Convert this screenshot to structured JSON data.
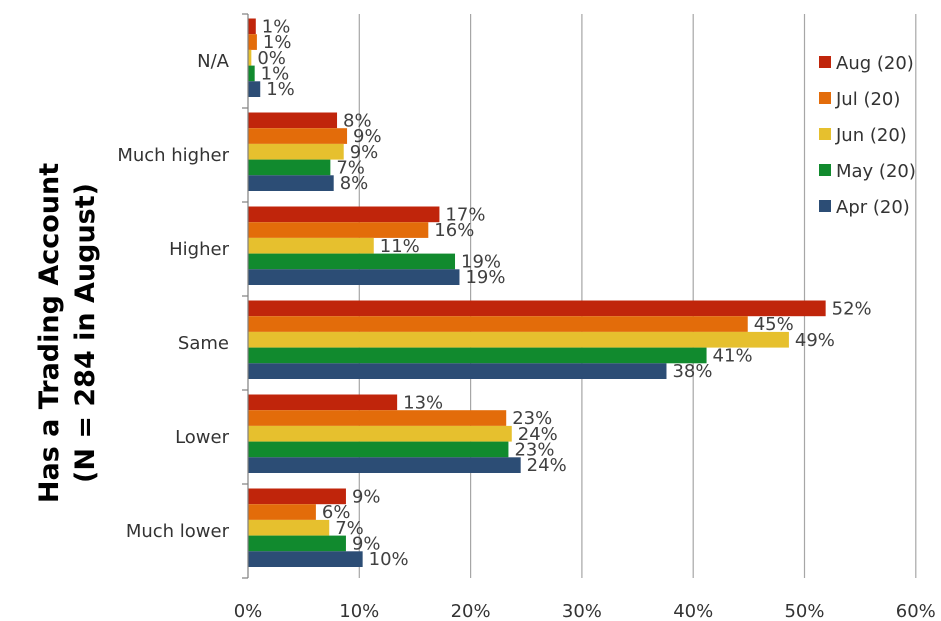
{
  "chart_data": {
    "type": "bar",
    "orientation": "horizontal",
    "ylabel": [
      "Has a Trading Account",
      "(N = 284 in August)"
    ],
    "xlabel": "",
    "categories": [
      "N/A",
      "Much higher",
      "Higher",
      "Same",
      "Lower",
      "Much lower"
    ],
    "x_ticks": [
      "0%",
      "10%",
      "20%",
      "30%",
      "40%",
      "50%",
      "60%"
    ],
    "xlim": [
      0,
      60
    ],
    "grid": "vertical",
    "legend_position": "top-right",
    "series": [
      {
        "name": "Aug (20)",
        "color": "#c0250b",
        "values": [
          0.7,
          8.0,
          17.2,
          51.9,
          13.4,
          8.8
        ],
        "labels": [
          "1%",
          "8%",
          "17%",
          "52%",
          "13%",
          "9%"
        ]
      },
      {
        "name": "Jul (20)",
        "color": "#e36c0a",
        "values": [
          0.8,
          8.9,
          16.2,
          44.9,
          23.2,
          6.1
        ],
        "labels": [
          "1%",
          "9%",
          "16%",
          "45%",
          "23%",
          "6%"
        ]
      },
      {
        "name": "Jun (20)",
        "color": "#e6c02e",
        "values": [
          0.3,
          8.6,
          11.3,
          48.6,
          23.7,
          7.3
        ],
        "labels": [
          "0%",
          "9%",
          "11%",
          "49%",
          "24%",
          "7%"
        ]
      },
      {
        "name": "May (20)",
        "color": "#118a2e",
        "values": [
          0.6,
          7.4,
          18.6,
          41.2,
          23.4,
          8.8
        ],
        "labels": [
          "1%",
          "7%",
          "19%",
          "41%",
          "23%",
          "9%"
        ]
      },
      {
        "name": "Apr (20)",
        "color": "#2c4d75",
        "values": [
          1.1,
          7.7,
          19.0,
          37.6,
          24.5,
          10.3
        ],
        "labels": [
          "1%",
          "8%",
          "19%",
          "38%",
          "24%",
          "10%"
        ]
      }
    ]
  }
}
